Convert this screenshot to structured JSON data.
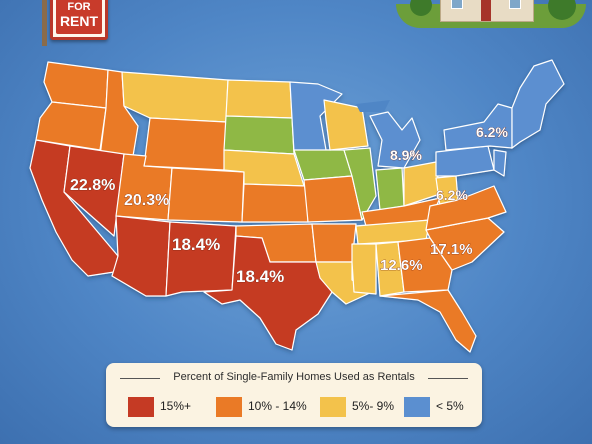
{
  "sign": {
    "line1": "FOR",
    "line2": "RENT"
  },
  "colors": {
    "tier_15_plus": "#c53a24",
    "tier_10_14": "#ea7a26",
    "tier_5_9": "#f3c24b",
    "tier_under_5": "#5b8fd0",
    "transition_green": "#8fb845",
    "ocean": "#4f86c6"
  },
  "map_labels": [
    {
      "id": "nevada",
      "text": "22.8%"
    },
    {
      "id": "utah",
      "text": "20.3%"
    },
    {
      "id": "new-mexico",
      "text": "18.4%"
    },
    {
      "id": "texas",
      "text": "18.4%"
    },
    {
      "id": "michigan",
      "text": "8.9%"
    },
    {
      "id": "new-england",
      "text": "6.2%"
    },
    {
      "id": "virginia",
      "text": "6.2%"
    },
    {
      "id": "georgia",
      "text": "12.6%"
    },
    {
      "id": "carolinas",
      "text": "17.1%"
    }
  ],
  "legend": {
    "title": "Percent of Single-Family Homes Used as Rentals",
    "items": [
      {
        "label": "15%+",
        "color": "#c53a24"
      },
      {
        "label": "10% - 14%",
        "color": "#ea7a26"
      },
      {
        "label": "5%- 9%",
        "color": "#f3c24b"
      },
      {
        "label": "< 5%",
        "color": "#5b8fd0"
      }
    ]
  }
}
